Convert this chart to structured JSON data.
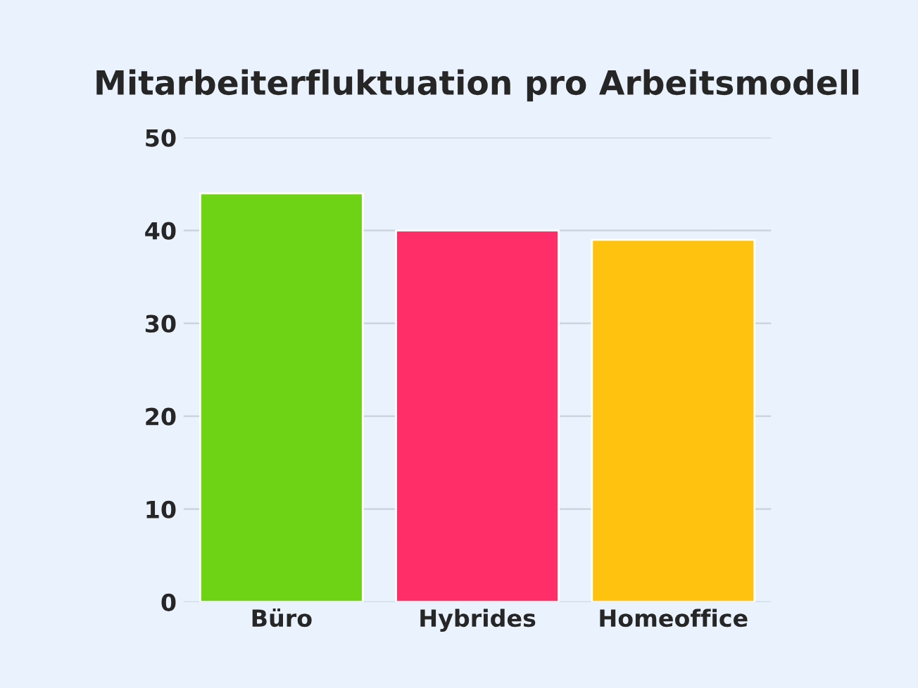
{
  "chart_data": {
    "type": "bar",
    "title": "Mitarbeiterfluktuation pro Arbeitsmodell",
    "categories": [
      "Büro",
      "Hybrides",
      "Homeoffice"
    ],
    "values": [
      44,
      40,
      39
    ],
    "colors": [
      "#6dd314",
      "#ff2d68",
      "#ffc30f"
    ],
    "ylim": [
      0,
      50
    ],
    "yticks": [
      0,
      10,
      20,
      30,
      40,
      50
    ],
    "grid": "y"
  }
}
